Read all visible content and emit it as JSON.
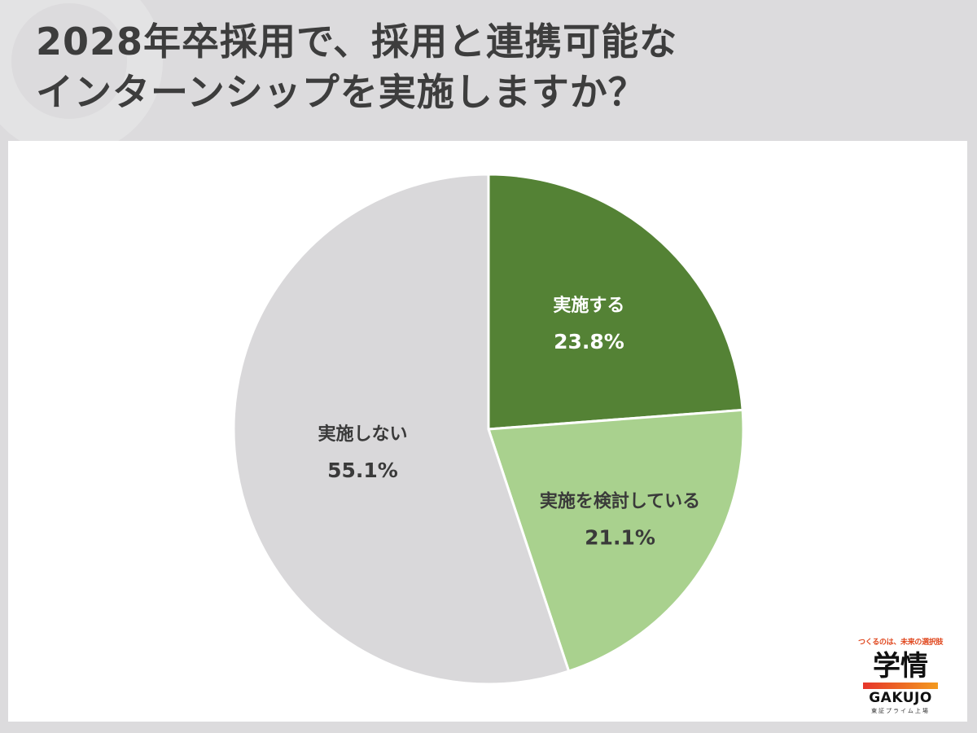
{
  "title_lines": [
    "2028年卒採用で、採用と連携可能な",
    "インターンシップを実施しますか？"
  ],
  "chart_data": {
    "type": "pie",
    "title": "2028年卒採用で、採用と連携可能なインターンシップを実施しますか？",
    "start_angle_deg": 0,
    "direction": "clockwise",
    "slices": [
      {
        "label": "実施する",
        "value": 23.8,
        "value_label": "23.8%",
        "color": "#548235",
        "label_color": "#ffffff"
      },
      {
        "label": "実施を検討している",
        "value": 21.1,
        "value_label": "21.1%",
        "color": "#a9d18e",
        "label_color": "#3a3a3a"
      },
      {
        "label": "実施しない",
        "value": 55.1,
        "value_label": "55.1%",
        "color": "#d9d8da",
        "label_color": "#3a3a3a"
      }
    ],
    "slice_border_color": "#ffffff"
  },
  "logo": {
    "tagline": "つくるのは、未来の選択肢",
    "kanji": "学情",
    "roman": "GAKUJO",
    "listing": "東証プライム上場"
  },
  "colors": {
    "background": "#dcdbdd",
    "panel": "#ffffff",
    "title": "#3d3d3d"
  }
}
